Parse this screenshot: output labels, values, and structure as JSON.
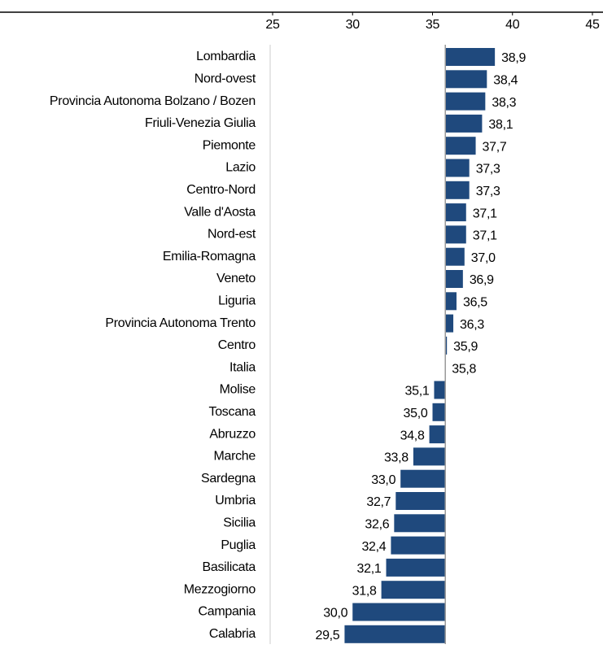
{
  "chart_data": {
    "type": "bar",
    "orientation": "horizontal",
    "color": "#1f497d",
    "categories": [
      "Lombardia",
      "Nord-ovest",
      "Provincia Autonoma Bolzano / Bozen",
      "Friuli-Venezia Giulia",
      "Piemonte",
      "Lazio",
      "Centro-Nord",
      "Valle d'Aosta",
      "Nord-est",
      "Emilia-Romagna",
      "Veneto",
      "Liguria",
      "Provincia Autonoma Trento",
      "Centro",
      "Italia",
      "Molise",
      "Toscana",
      "Abruzzo",
      "Marche",
      "Sardegna",
      "Umbria",
      "Sicilia",
      "Puglia",
      "Basilicata",
      "Mezzogiorno",
      "Campania",
      "Calabria"
    ],
    "values": [
      38.9,
      38.4,
      38.3,
      38.1,
      37.7,
      37.3,
      37.3,
      37.1,
      37.1,
      37.0,
      36.9,
      36.5,
      36.3,
      35.9,
      35.8,
      35.1,
      35.0,
      34.8,
      33.8,
      33.0,
      32.7,
      32.6,
      32.4,
      32.1,
      31.8,
      30.0,
      29.5
    ],
    "value_labels": [
      "38,9",
      "38,4",
      "38,3",
      "38,1",
      "37,7",
      "37,3",
      "37,3",
      "37,1",
      "37,1",
      "37,0",
      "36,9",
      "36,5",
      "36,3",
      "35,9",
      "35,8",
      "35,1",
      "35,0",
      "34,8",
      "33,8",
      "33,0",
      "32,7",
      "32,6",
      "32,4",
      "32,1",
      "31,8",
      "30,0",
      "29,5"
    ],
    "xorigin": 35.8,
    "xlim": [
      25,
      45
    ],
    "xticks": [
      25,
      30,
      35,
      40,
      45
    ]
  }
}
